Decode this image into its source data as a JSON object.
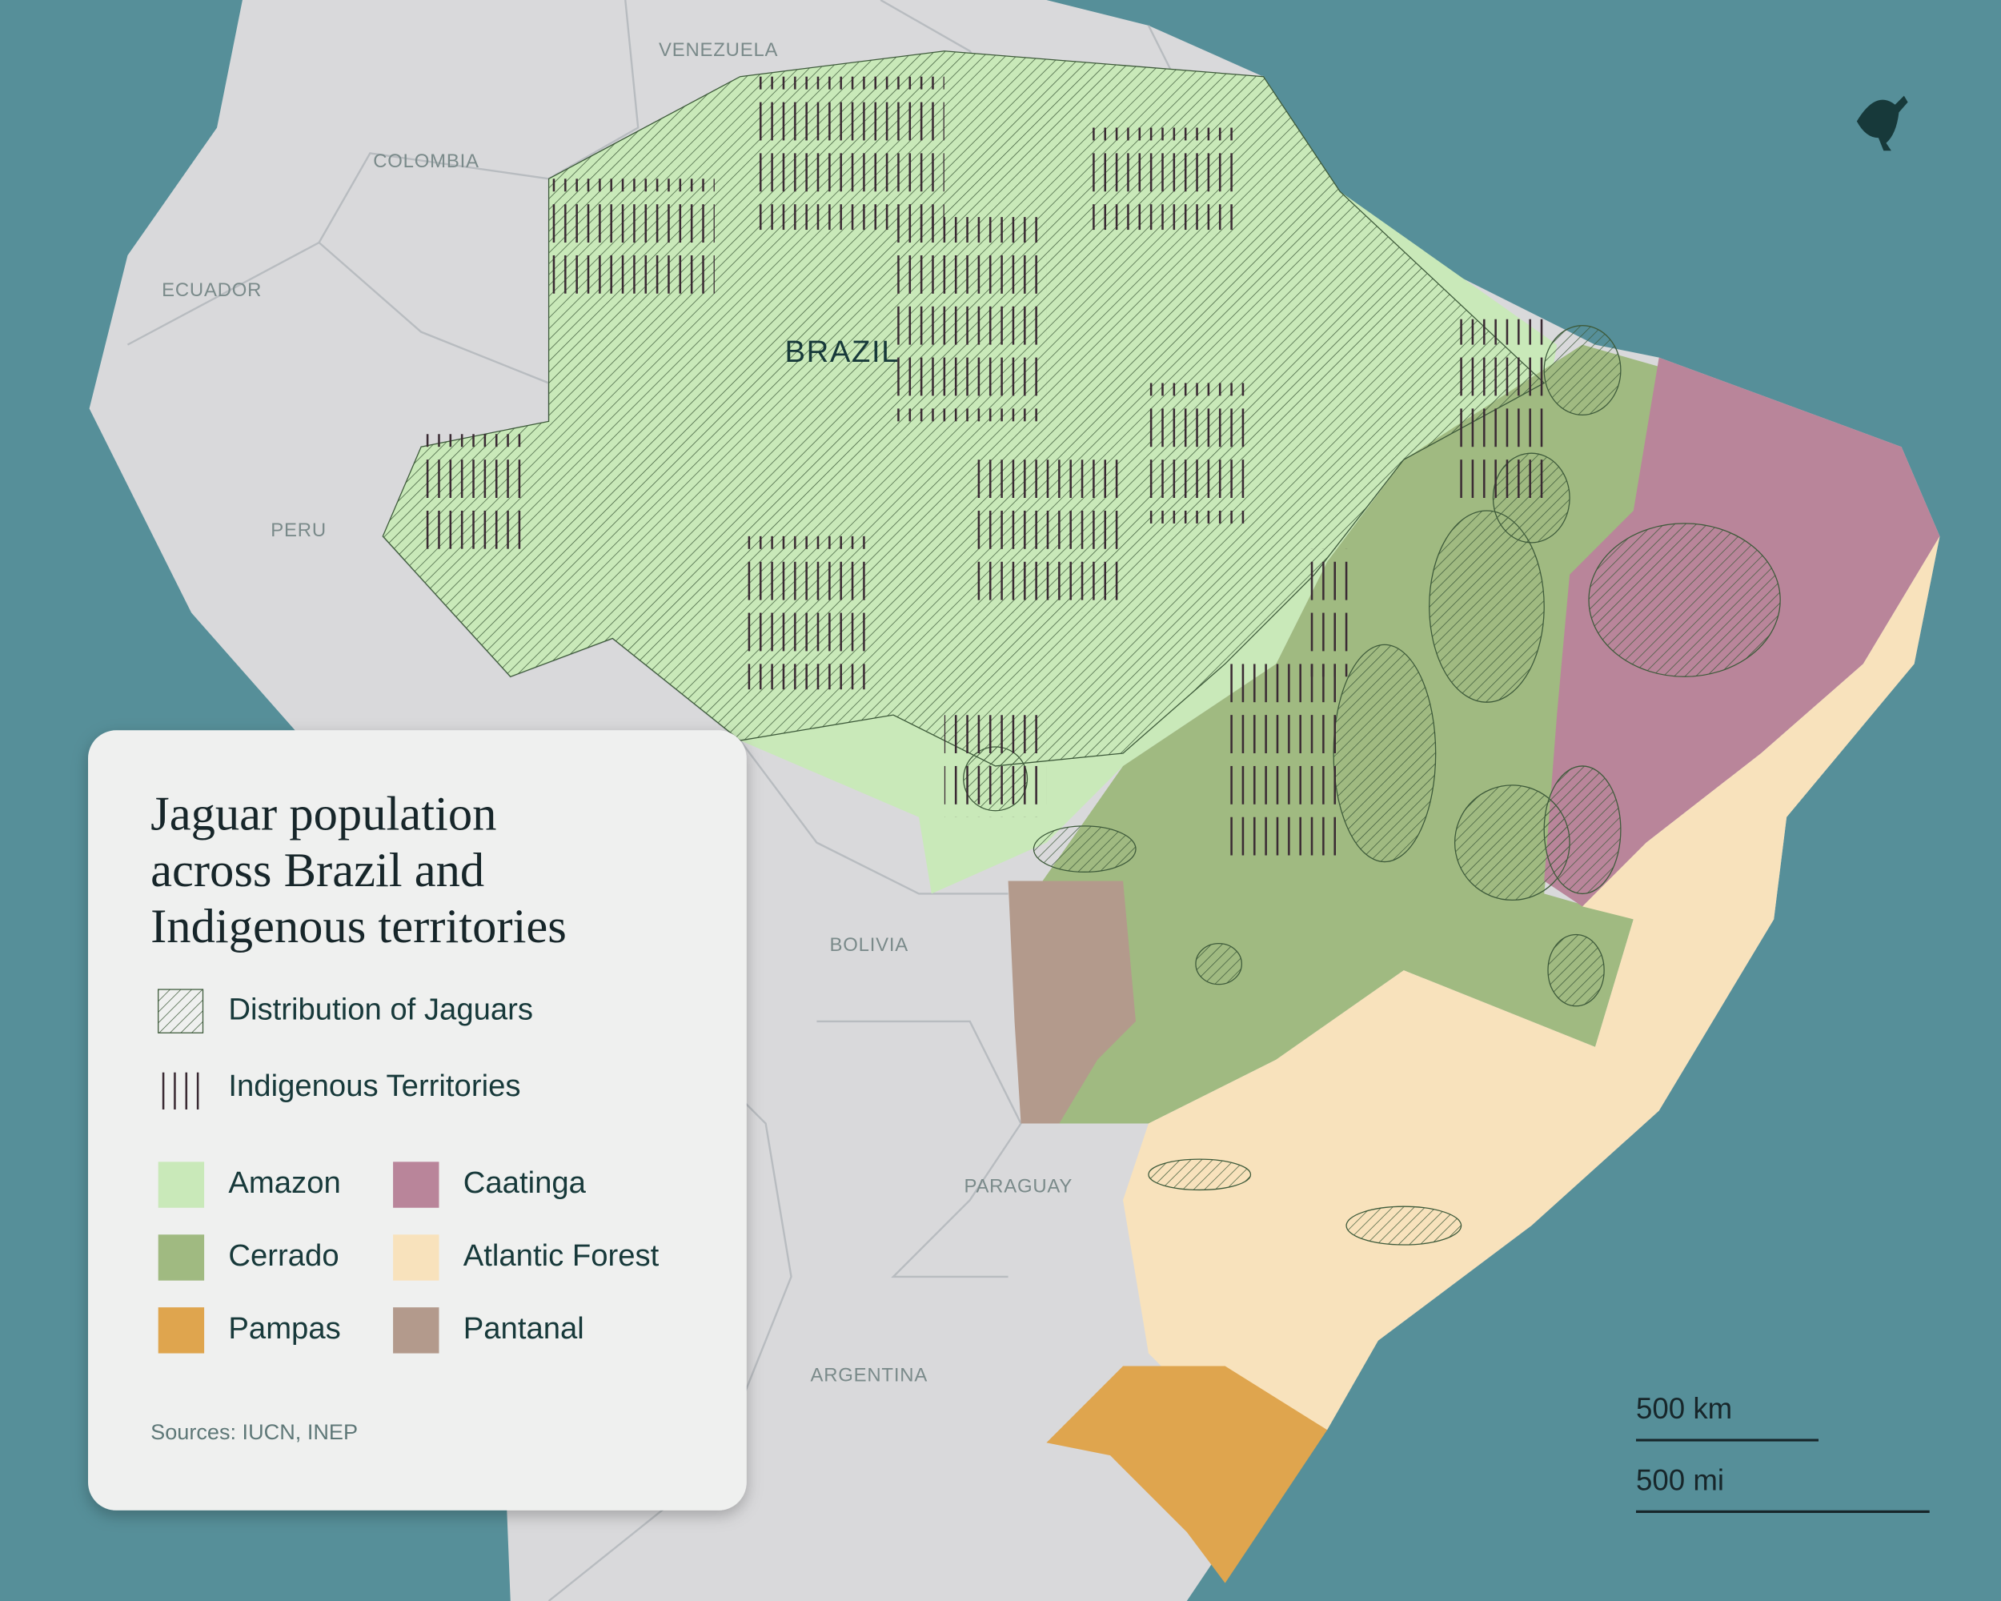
{
  "map": {
    "title": [
      "Jaguar population",
      "across Brazil and",
      "Indigenous territories"
    ],
    "overlays": [
      {
        "label": "Distribution of Jaguars"
      },
      {
        "label": "Indigenous Territories"
      }
    ],
    "biomes": [
      {
        "label": "Amazon",
        "color": "#c9e9b9"
      },
      {
        "label": "Cerrado",
        "color": "#a0ba81"
      },
      {
        "label": "Pampas",
        "color": "#dfa54e"
      },
      {
        "label": "Caatinga",
        "color": "#b9859a"
      },
      {
        "label": "Atlantic Forest",
        "color": "#f8e2bc"
      },
      {
        "label": "Pantanal",
        "color": "#b39a8c"
      }
    ],
    "source": "Sources: IUCN, INEP",
    "country_label": "BRAZIL",
    "countries": [
      "VENEZUELA",
      "COLOMBIA",
      "ECUADOR",
      "PERU",
      "BOLIVIA",
      "PARAGUAY",
      "ARGENTINA"
    ],
    "scale": [
      "500 km",
      "500 mi"
    ]
  }
}
